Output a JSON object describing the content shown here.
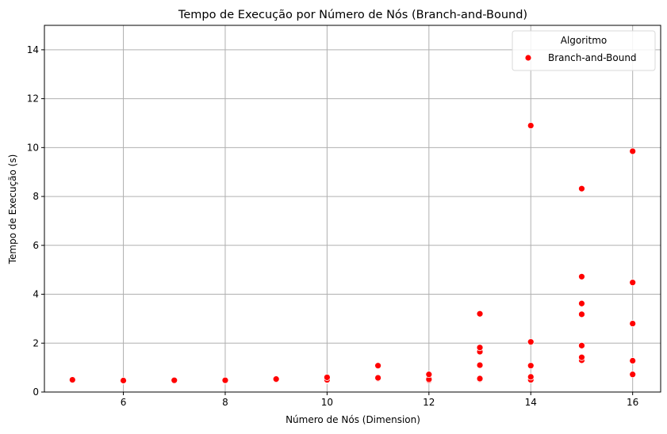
{
  "chart_data": {
    "type": "scatter",
    "title": "Tempo de Execução por Número de Nós (Branch-and-Bound)",
    "xlabel": "Número de Nós (Dimension)",
    "ylabel": "Tempo de Execução (s)",
    "xlim": [
      4.45,
      16.55
    ],
    "ylim": [
      0,
      15
    ],
    "xticks": [
      6,
      8,
      10,
      12,
      14,
      16
    ],
    "yticks": [
      0,
      2,
      4,
      6,
      8,
      10,
      12,
      14
    ],
    "grid": true,
    "legend": {
      "title": "Algoritmo",
      "placement": "top-right"
    },
    "series": [
      {
        "name": "Branch-and-Bound",
        "color": "#ff0000",
        "points": [
          [
            5,
            0.48
          ],
          [
            5,
            0.5
          ],
          [
            6,
            0.45
          ],
          [
            6,
            0.47
          ],
          [
            7,
            0.46
          ],
          [
            7,
            0.48
          ],
          [
            8,
            0.46
          ],
          [
            8,
            0.48
          ],
          [
            9,
            0.5
          ],
          [
            9,
            0.53
          ],
          [
            10,
            0.47
          ],
          [
            10,
            0.5
          ],
          [
            10,
            0.6
          ],
          [
            11,
            0.55
          ],
          [
            11,
            0.58
          ],
          [
            11,
            1.08
          ],
          [
            12,
            0.48
          ],
          [
            12,
            0.52
          ],
          [
            12,
            0.72
          ],
          [
            13,
            0.52
          ],
          [
            13,
            0.55
          ],
          [
            13,
            1.1
          ],
          [
            13,
            1.65
          ],
          [
            13,
            1.82
          ],
          [
            13,
            3.2
          ],
          [
            14,
            0.5
          ],
          [
            14,
            0.62
          ],
          [
            14,
            1.08
          ],
          [
            14,
            2.05
          ],
          [
            14,
            10.9
          ],
          [
            15,
            1.3
          ],
          [
            15,
            1.42
          ],
          [
            15,
            1.9
          ],
          [
            15,
            3.18
          ],
          [
            15,
            3.62
          ],
          [
            15,
            4.72
          ],
          [
            15,
            8.32
          ],
          [
            16,
            0.72
          ],
          [
            16,
            1.28
          ],
          [
            16,
            2.8
          ],
          [
            16,
            4.48
          ],
          [
            16,
            9.85
          ]
        ]
      }
    ]
  }
}
